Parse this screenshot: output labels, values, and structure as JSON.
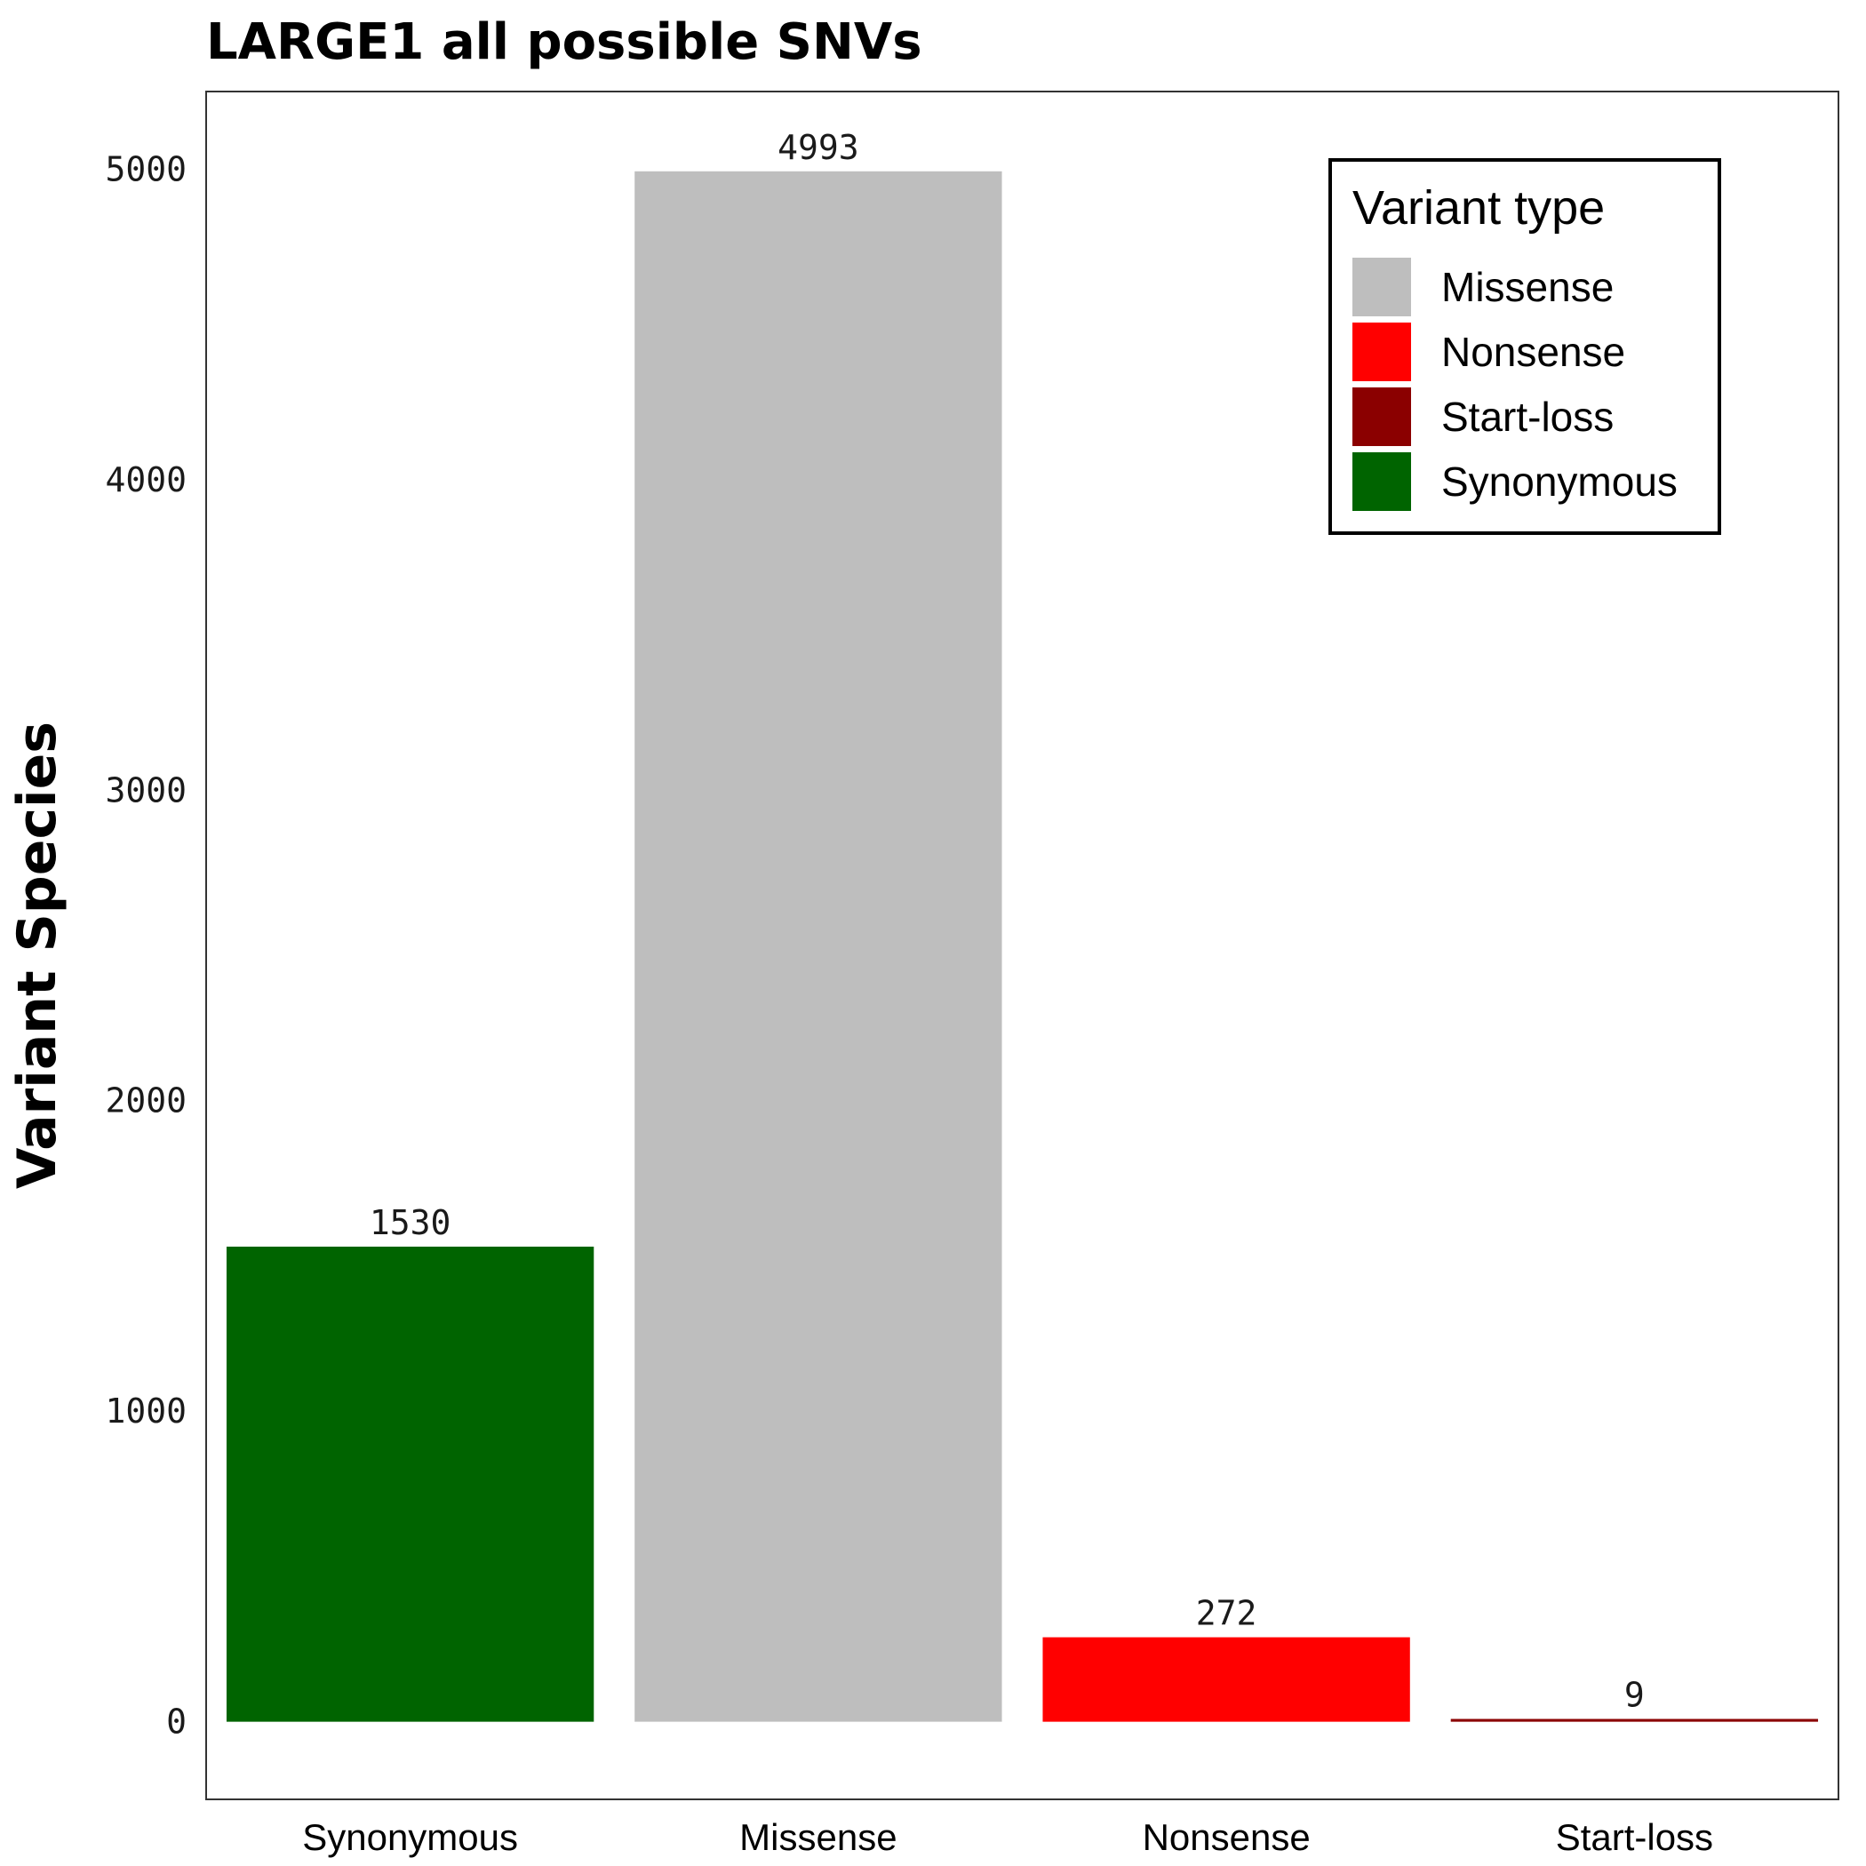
{
  "chart_data": {
    "type": "bar",
    "title": "LARGE1 all possible SNVs",
    "xlabel": "",
    "ylabel": "Variant Species",
    "categories": [
      "Synonymous",
      "Missense",
      "Nonsense",
      "Start-loss"
    ],
    "values": [
      1530,
      4993,
      272,
      9
    ],
    "data_labels": [
      "1530",
      "4993",
      "272",
      "9"
    ],
    "colors": [
      "#006400",
      "#bebebe",
      "#ff0000",
      "#8b0000"
    ],
    "ylim": [
      -250,
      5250
    ],
    "yticks": [
      0,
      1000,
      2000,
      3000,
      4000,
      5000
    ],
    "ytick_labels": [
      "0",
      "1000",
      "2000",
      "3000",
      "4000",
      "5000"
    ],
    "grid": false,
    "legend": {
      "title": "Variant type",
      "placement": "top-right",
      "entries": [
        {
          "label": "Missense",
          "color": "#bebebe"
        },
        {
          "label": "Nonsense",
          "color": "#ff0000"
        },
        {
          "label": "Start-loss",
          "color": "#8b0000"
        },
        {
          "label": "Synonymous",
          "color": "#006400"
        }
      ]
    }
  }
}
